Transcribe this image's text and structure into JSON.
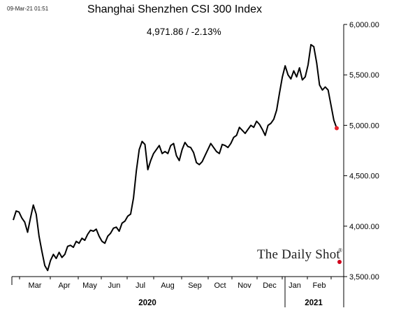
{
  "header": {
    "timestamp": "09-Mar-21 01:51",
    "title": "Shanghai Shenzhen CSI 300 Index",
    "summary": "4,971.86  /  -2.13%"
  },
  "brand": {
    "name": "The Daily Shot",
    "reg": "®",
    "accent": "#d0021b"
  },
  "colors": {
    "line": "#000000",
    "last_point": "#e8202a",
    "axis": "#000000"
  },
  "chart_data": {
    "type": "line",
    "title": "Shanghai Shenzhen CSI 300 Index",
    "xlabel": "",
    "ylabel": "",
    "ylim": [
      3500,
      6000
    ],
    "y_ticks": [
      3500,
      4000,
      4500,
      5000,
      5500,
      6000
    ],
    "y_tick_labels": [
      "3,500.00",
      "4,000.00",
      "4,500.00",
      "5,000.00",
      "5,500.00",
      "6,000.00"
    ],
    "y_axis_position": "right",
    "grid": false,
    "x_month_labels": [
      "Mar",
      "Apr",
      "May",
      "Jun",
      "Jul",
      "Aug",
      "Sep",
      "Oct",
      "Nov",
      "Dec",
      "Jan",
      "Feb"
    ],
    "x_year_labels": [
      "2020",
      "2021"
    ],
    "last_value": 4971.86,
    "change_pct": -2.13,
    "series": [
      {
        "values": [
          4060,
          4150,
          4140,
          4080,
          4040,
          3940,
          4080,
          4210,
          4120,
          3900,
          3750,
          3610,
          3560,
          3660,
          3720,
          3680,
          3740,
          3690,
          3720,
          3800,
          3810,
          3790,
          3850,
          3830,
          3880,
          3860,
          3920,
          3960,
          3950,
          3970,
          3900,
          3850,
          3830,
          3900,
          3930,
          3980,
          3990,
          3950,
          4030,
          4050,
          4100,
          4120,
          4280,
          4550,
          4760,
          4840,
          4810,
          4560,
          4650,
          4720,
          4760,
          4800,
          4720,
          4740,
          4720,
          4800,
          4820,
          4700,
          4650,
          4760,
          4830,
          4790,
          4780,
          4730,
          4630,
          4610,
          4640,
          4700,
          4760,
          4820,
          4780,
          4740,
          4720,
          4810,
          4800,
          4780,
          4820,
          4880,
          4900,
          4980,
          4950,
          4920,
          4960,
          5000,
          4980,
          5040,
          5010,
          4960,
          4900,
          5000,
          5020,
          5060,
          5150,
          5320,
          5480,
          5590,
          5500,
          5460,
          5540,
          5480,
          5570,
          5450,
          5480,
          5600,
          5800,
          5780,
          5620,
          5400,
          5350,
          5380,
          5350,
          5200,
          5050,
          4971.86
        ]
      }
    ]
  }
}
